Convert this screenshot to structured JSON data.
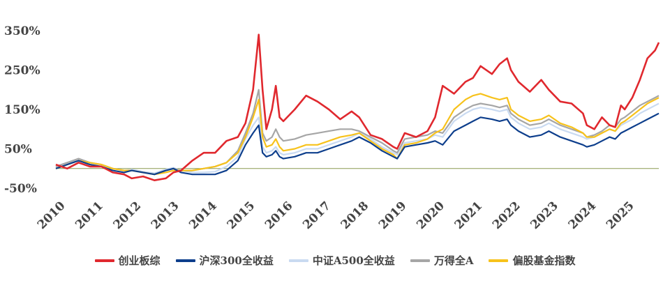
{
  "chart_data": {
    "type": "line",
    "title": "",
    "xlabel": "",
    "ylabel": "",
    "x_ticks": [
      "2010",
      "2011",
      "2012",
      "2013",
      "2014",
      "2015",
      "2016",
      "2017",
      "2018",
      "2019",
      "2020",
      "2021",
      "2022",
      "2023",
      "2024",
      "2025"
    ],
    "y_ticks": [
      "350%",
      "250%",
      "150%",
      "50%",
      "-50%"
    ],
    "ylim": [
      -50,
      350
    ],
    "xlim": [
      2010.0,
      2025.9
    ],
    "zero_line": true,
    "legend_position": "bottom",
    "series": [
      {
        "name": "创业板综",
        "color": "#e0282e",
        "x": [
          2010.0,
          2010.3,
          2010.6,
          2010.9,
          2011.2,
          2011.5,
          2011.8,
          2012.0,
          2012.3,
          2012.6,
          2012.9,
          2013.1,
          2013.3,
          2013.6,
          2013.9,
          2014.2,
          2014.5,
          2014.8,
          2015.0,
          2015.2,
          2015.35,
          2015.45,
          2015.55,
          2015.7,
          2015.8,
          2015.9,
          2016.0,
          2016.3,
          2016.6,
          2016.9,
          2017.2,
          2017.5,
          2017.8,
          2018.0,
          2018.3,
          2018.6,
          2018.9,
          2019.0,
          2019.2,
          2019.5,
          2019.8,
          2020.0,
          2020.2,
          2020.5,
          2020.8,
          2021.0,
          2021.2,
          2021.5,
          2021.7,
          2021.9,
          2022.0,
          2022.2,
          2022.5,
          2022.8,
          2023.0,
          2023.3,
          2023.6,
          2023.9,
          2024.0,
          2024.2,
          2024.4,
          2024.6,
          2024.75,
          2024.9,
          2025.0,
          2025.2,
          2025.4,
          2025.6,
          2025.8,
          2025.9
        ],
        "values": [
          10,
          0,
          15,
          5,
          5,
          -10,
          -15,
          -25,
          -20,
          -30,
          -25,
          -10,
          -5,
          20,
          40,
          40,
          70,
          80,
          115,
          200,
          340,
          200,
          100,
          150,
          210,
          130,
          120,
          150,
          185,
          170,
          150,
          125,
          145,
          130,
          85,
          75,
          55,
          50,
          90,
          80,
          95,
          130,
          210,
          190,
          220,
          230,
          260,
          240,
          265,
          280,
          250,
          220,
          195,
          225,
          200,
          170,
          165,
          140,
          110,
          100,
          130,
          110,
          105,
          160,
          150,
          180,
          225,
          280,
          300,
          320
        ]
      },
      {
        "name": "沪深300全收益",
        "color": "#0d3e8c",
        "x": [
          2010.0,
          2010.3,
          2010.6,
          2010.9,
          2011.2,
          2011.5,
          2011.8,
          2012.0,
          2012.3,
          2012.6,
          2012.9,
          2013.1,
          2013.3,
          2013.6,
          2013.9,
          2014.2,
          2014.5,
          2014.8,
          2015.0,
          2015.2,
          2015.35,
          2015.45,
          2015.55,
          2015.7,
          2015.8,
          2015.9,
          2016.0,
          2016.3,
          2016.6,
          2016.9,
          2017.2,
          2017.5,
          2017.8,
          2018.0,
          2018.3,
          2018.6,
          2018.9,
          2019.0,
          2019.2,
          2019.5,
          2019.8,
          2020.0,
          2020.2,
          2020.5,
          2020.8,
          2021.0,
          2021.2,
          2021.5,
          2021.7,
          2021.9,
          2022.0,
          2022.2,
          2022.5,
          2022.8,
          2023.0,
          2023.3,
          2023.6,
          2023.9,
          2024.0,
          2024.2,
          2024.4,
          2024.6,
          2024.75,
          2024.9,
          2025.0,
          2025.2,
          2025.4,
          2025.6,
          2025.8,
          2025.9
        ],
        "values": [
          0,
          10,
          20,
          10,
          5,
          -5,
          -10,
          -5,
          -10,
          -15,
          -5,
          0,
          -10,
          -15,
          -15,
          -15,
          -5,
          20,
          60,
          90,
          110,
          40,
          30,
          35,
          45,
          30,
          25,
          30,
          40,
          40,
          50,
          60,
          70,
          80,
          65,
          45,
          30,
          25,
          55,
          60,
          65,
          70,
          60,
          95,
          110,
          120,
          130,
          125,
          120,
          125,
          110,
          95,
          80,
          85,
          95,
          80,
          70,
          60,
          55,
          60,
          70,
          80,
          75,
          90,
          95,
          105,
          115,
          125,
          135,
          140
        ]
      },
      {
        "name": "中证A500全收益",
        "color": "#c9daf1",
        "x": [
          2010.0,
          2010.3,
          2010.6,
          2010.9,
          2011.2,
          2011.5,
          2011.8,
          2012.0,
          2012.3,
          2012.6,
          2012.9,
          2013.1,
          2013.3,
          2013.6,
          2013.9,
          2014.2,
          2014.5,
          2014.8,
          2015.0,
          2015.2,
          2015.35,
          2015.45,
          2015.55,
          2015.7,
          2015.8,
          2015.9,
          2016.0,
          2016.3,
          2016.6,
          2016.9,
          2017.2,
          2017.5,
          2017.8,
          2018.0,
          2018.3,
          2018.6,
          2018.9,
          2019.0,
          2019.2,
          2019.5,
          2019.8,
          2020.0,
          2020.2,
          2020.5,
          2020.8,
          2021.0,
          2021.2,
          2021.5,
          2021.7,
          2021.9,
          2022.0,
          2022.2,
          2022.5,
          2022.8,
          2023.0,
          2023.3,
          2023.6,
          2023.9,
          2024.0,
          2024.2,
          2024.4,
          2024.6,
          2024.75,
          2024.9,
          2025.0,
          2025.2,
          2025.4,
          2025.6,
          2025.8,
          2025.9
        ],
        "values": [
          5,
          15,
          20,
          15,
          8,
          0,
          -5,
          -2,
          -8,
          -12,
          -2,
          2,
          -5,
          -10,
          -10,
          -8,
          5,
          30,
          75,
          110,
          130,
          55,
          40,
          45,
          55,
          40,
          35,
          40,
          50,
          50,
          60,
          70,
          80,
          90,
          75,
          55,
          40,
          35,
          65,
          70,
          75,
          85,
          80,
          120,
          140,
          150,
          155,
          150,
          145,
          150,
          130,
          115,
          100,
          105,
          115,
          100,
          90,
          80,
          75,
          80,
          90,
          100,
          95,
          110,
          115,
          125,
          140,
          150,
          160,
          165
        ]
      },
      {
        "name": "万得全A",
        "color": "#a6a6a6",
        "x": [
          2010.0,
          2010.3,
          2010.6,
          2010.9,
          2011.2,
          2011.5,
          2011.8,
          2012.0,
          2012.3,
          2012.6,
          2012.9,
          2013.1,
          2013.3,
          2013.6,
          2013.9,
          2014.2,
          2014.5,
          2014.8,
          2015.0,
          2015.2,
          2015.35,
          2015.45,
          2015.55,
          2015.7,
          2015.8,
          2015.9,
          2016.0,
          2016.3,
          2016.6,
          2016.9,
          2017.2,
          2017.5,
          2017.8,
          2018.0,
          2018.3,
          2018.6,
          2018.9,
          2019.0,
          2019.2,
          2019.5,
          2019.8,
          2020.0,
          2020.2,
          2020.5,
          2020.8,
          2021.0,
          2021.2,
          2021.5,
          2021.7,
          2021.9,
          2022.0,
          2022.2,
          2022.5,
          2022.8,
          2023.0,
          2023.3,
          2023.6,
          2023.9,
          2024.0,
          2024.2,
          2024.4,
          2024.6,
          2024.75,
          2024.9,
          2025.0,
          2025.2,
          2025.4,
          2025.6,
          2025.8,
          2025.9
        ],
        "values": [
          5,
          15,
          25,
          15,
          10,
          0,
          -5,
          -5,
          -10,
          -15,
          -5,
          0,
          -5,
          -5,
          0,
          5,
          15,
          45,
          90,
          140,
          200,
          90,
          70,
          80,
          100,
          80,
          70,
          75,
          85,
          90,
          95,
          100,
          100,
          95,
          80,
          65,
          45,
          40,
          75,
          80,
          85,
          95,
          90,
          130,
          150,
          160,
          165,
          160,
          155,
          160,
          140,
          125,
          110,
          115,
          125,
          110,
          100,
          90,
          80,
          85,
          95,
          110,
          105,
          125,
          130,
          145,
          160,
          170,
          180,
          185
        ]
      },
      {
        "name": "偏股基金指数",
        "color": "#f7c21b",
        "x": [
          2010.0,
          2010.3,
          2010.6,
          2010.9,
          2011.2,
          2011.5,
          2011.8,
          2012.0,
          2012.3,
          2012.6,
          2012.9,
          2013.1,
          2013.3,
          2013.6,
          2013.9,
          2014.2,
          2014.5,
          2014.8,
          2015.0,
          2015.2,
          2015.35,
          2015.45,
          2015.55,
          2015.7,
          2015.8,
          2015.9,
          2016.0,
          2016.3,
          2016.6,
          2016.9,
          2017.2,
          2017.5,
          2017.8,
          2018.0,
          2018.3,
          2018.6,
          2018.9,
          2019.0,
          2019.2,
          2019.5,
          2019.8,
          2020.0,
          2020.2,
          2020.5,
          2020.8,
          2021.0,
          2021.2,
          2021.5,
          2021.7,
          2021.9,
          2022.0,
          2022.2,
          2022.5,
          2022.8,
          2023.0,
          2023.3,
          2023.6,
          2023.9,
          2024.0,
          2024.2,
          2024.4,
          2024.6,
          2024.75,
          2024.9,
          2025.0,
          2025.2,
          2025.4,
          2025.6,
          2025.8,
          2025.9
        ],
        "values": [
          0,
          10,
          20,
          15,
          10,
          0,
          -5,
          -5,
          -10,
          -15,
          -10,
          -5,
          -5,
          -5,
          0,
          5,
          15,
          40,
          80,
          130,
          175,
          80,
          55,
          60,
          75,
          55,
          45,
          50,
          60,
          60,
          70,
          80,
          85,
          90,
          70,
          50,
          35,
          25,
          60,
          65,
          75,
          90,
          100,
          150,
          175,
          185,
          190,
          180,
          175,
          180,
          150,
          135,
          120,
          125,
          135,
          115,
          105,
          90,
          80,
          80,
          90,
          100,
          95,
          115,
          120,
          135,
          150,
          165,
          175,
          180
        ]
      }
    ]
  }
}
